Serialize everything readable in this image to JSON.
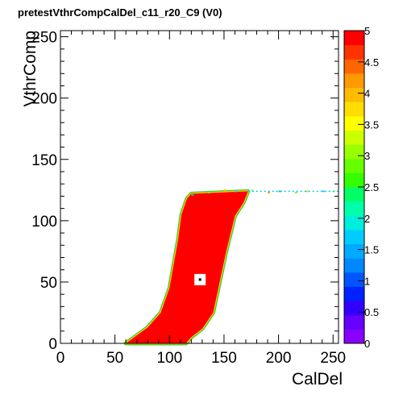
{
  "title": "pretestVthrCompCalDel_c11_r20_C9 (V0)",
  "chart_data": {
    "type": "heatmap",
    "title": "pretestVthrCompCalDel_c11_r20_C9 (V0)",
    "xlabel": "CalDel",
    "ylabel": "VthrComp",
    "xlim": [
      0,
      255
    ],
    "ylim": [
      0,
      255
    ],
    "x_ticks": [
      "0",
      "50",
      "100",
      "150",
      "200",
      "250"
    ],
    "y_ticks": [
      "0",
      "50",
      "100",
      "150",
      "200",
      "250"
    ],
    "colorbar": {
      "range": [
        0,
        5
      ],
      "ticks": [
        "0",
        "0.5",
        "1",
        "1.5",
        "2",
        "2.5",
        "3",
        "3.5",
        "4",
        "4.5",
        "5"
      ]
    },
    "region_max_value": 5,
    "plateau_y": 124,
    "plateau_x_end": 255,
    "band_left_edge": [
      [
        60,
        0
      ],
      [
        80,
        13
      ],
      [
        92,
        25
      ],
      [
        100,
        45
      ],
      [
        104,
        65
      ],
      [
        108,
        85
      ],
      [
        111,
        105
      ],
      [
        116,
        118
      ],
      [
        120,
        122
      ]
    ],
    "band_right_edge": [
      [
        120,
        122
      ],
      [
        172,
        124
      ],
      [
        168,
        115
      ],
      [
        160,
        104
      ],
      [
        152,
        75
      ],
      [
        146,
        50
      ],
      [
        140,
        25
      ],
      [
        130,
        12
      ],
      [
        120,
        5
      ],
      [
        115,
        0
      ]
    ],
    "fringe_points": [
      [
        120,
        121
      ],
      [
        135,
        123
      ],
      [
        150,
        125
      ],
      [
        160,
        124
      ],
      [
        175,
        125
      ],
      [
        190,
        123
      ],
      [
        200,
        124
      ],
      [
        215,
        123
      ],
      [
        225,
        124
      ],
      [
        240,
        124
      ],
      [
        250,
        124
      ]
    ],
    "empty_cell": [
      128,
      52
    ]
  }
}
